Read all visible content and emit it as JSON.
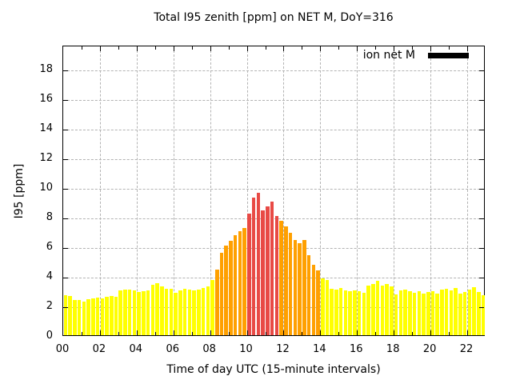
{
  "title": "Total I95 zenith [ppm] on NET M, DoY=316",
  "chart_data": {
    "type": "bar",
    "title": "Total I95 zenith [ppm] on NET M, DoY=316",
    "xlabel": "Time of day UTC (15-minute intervals)",
    "ylabel": "I95 [ppm]",
    "legend": {
      "label": "ion net M",
      "swatch_color": "#000000",
      "position": "top-right-inside"
    },
    "grid": true,
    "x_hours_range": [
      0,
      23
    ],
    "ylim": [
      0,
      19.6
    ],
    "interval_minutes": 15,
    "x_tick_hours": [
      0,
      2,
      4,
      6,
      8,
      10,
      12,
      14,
      16,
      18,
      20,
      22
    ],
    "x_tick_labels": [
      "00",
      "02",
      "04",
      "06",
      "08",
      "10",
      "12",
      "14",
      "16",
      "18",
      "20",
      "22"
    ],
    "y_tick_values": [
      0,
      2,
      4,
      6,
      8,
      10,
      12,
      14,
      16,
      18
    ],
    "y_tick_labels": [
      "0",
      "2",
      "4",
      "6",
      "8",
      "10",
      "12",
      "14",
      "16",
      "18"
    ],
    "bar_colors": {
      "low": "#ffff00",
      "mid": "#ffa000",
      "high": "#e84a45"
    },
    "color_thresholds": {
      "mid_min": 4.0,
      "high_min": 8.0
    },
    "series": [
      {
        "name": "ion net M",
        "times": [
          "00:00",
          "00:15",
          "00:30",
          "00:45",
          "01:00",
          "01:15",
          "01:30",
          "01:45",
          "02:00",
          "02:15",
          "02:30",
          "02:45",
          "03:00",
          "03:15",
          "03:30",
          "03:45",
          "04:00",
          "04:15",
          "04:30",
          "04:45",
          "05:00",
          "05:15",
          "05:30",
          "05:45",
          "06:00",
          "06:15",
          "06:30",
          "06:45",
          "07:00",
          "07:15",
          "07:30",
          "07:45",
          "08:00",
          "08:15",
          "08:30",
          "08:45",
          "09:00",
          "09:15",
          "09:30",
          "09:45",
          "10:00",
          "10:15",
          "10:30",
          "10:45",
          "11:00",
          "11:15",
          "11:30",
          "11:45",
          "12:00",
          "12:15",
          "12:30",
          "12:45",
          "13:00",
          "13:15",
          "13:30",
          "13:45",
          "14:00",
          "14:15",
          "14:30",
          "14:45",
          "15:00",
          "15:15",
          "15:30",
          "15:45",
          "16:00",
          "16:15",
          "16:30",
          "16:45",
          "17:00",
          "17:15",
          "17:30",
          "17:45",
          "18:00",
          "18:15",
          "18:30",
          "18:45",
          "19:00",
          "19:15",
          "19:30",
          "19:45",
          "20:00",
          "20:15",
          "20:30",
          "20:45",
          "21:00",
          "21:15",
          "21:30",
          "21:45",
          "22:00",
          "22:15",
          "22:30",
          "22:45"
        ],
        "values": [
          2.7,
          2.65,
          2.4,
          2.4,
          2.25,
          2.45,
          2.5,
          2.55,
          2.5,
          2.6,
          2.65,
          2.6,
          3.0,
          3.1,
          3.1,
          3.05,
          2.9,
          2.95,
          3.05,
          3.4,
          3.5,
          3.3,
          3.15,
          3.15,
          2.85,
          3.05,
          3.15,
          3.1,
          3.0,
          3.1,
          3.2,
          3.3,
          3.7,
          4.45,
          5.55,
          6.05,
          6.35,
          6.75,
          7.0,
          7.25,
          8.2,
          9.3,
          9.6,
          8.4,
          8.7,
          9.0,
          8.05,
          7.7,
          7.35,
          6.9,
          6.4,
          6.2,
          6.45,
          5.4,
          4.75,
          4.35,
          3.85,
          3.7,
          3.15,
          3.1,
          3.2,
          3.0,
          2.95,
          3.0,
          2.95,
          2.85,
          3.35,
          3.45,
          3.65,
          3.35,
          3.45,
          3.3,
          2.75,
          3.0,
          3.1,
          2.95,
          2.85,
          2.95,
          2.8,
          2.9,
          2.95,
          2.8,
          3.1,
          3.15,
          3.05,
          3.2,
          2.8,
          2.9,
          3.1,
          3.25,
          2.9,
          2.7
        ]
      }
    ]
  }
}
